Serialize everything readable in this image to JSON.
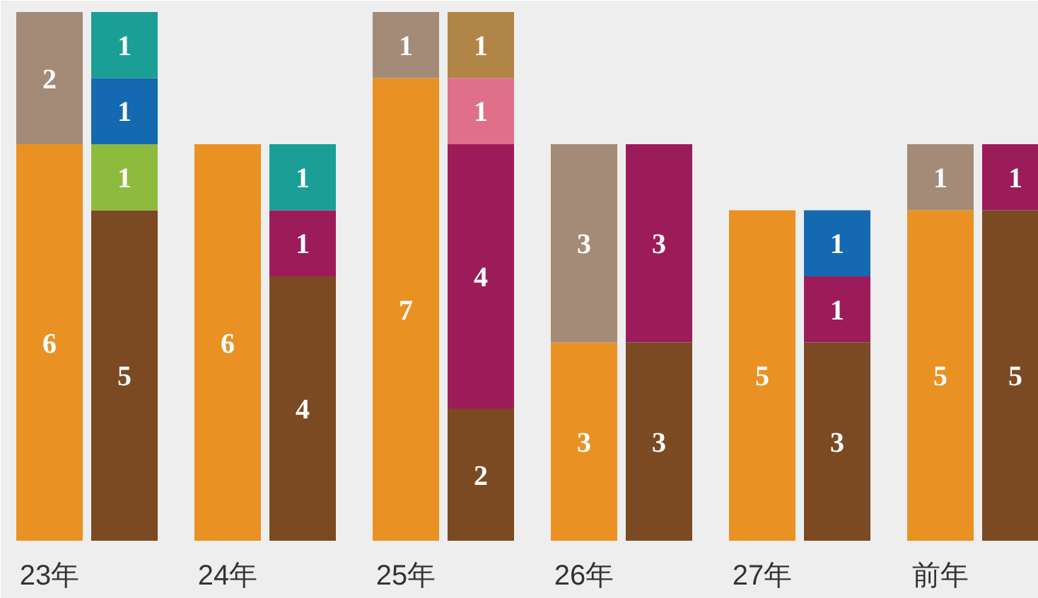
{
  "chart_data": {
    "type": "bar",
    "stacked": true,
    "data_labels": true,
    "grid": false,
    "ylim": [
      0,
      8
    ],
    "categories": [
      "23年",
      null,
      "24年",
      null,
      "25年",
      null,
      "26年",
      null,
      "27年",
      null,
      "前年",
      null
    ],
    "series": [
      {
        "color": "#7b4a22",
        "values": [
          null,
          5,
          null,
          4,
          null,
          2,
          null,
          3,
          null,
          3,
          null,
          5
        ]
      },
      {
        "color": "#e99223",
        "values": [
          6,
          null,
          6,
          null,
          7,
          null,
          3,
          null,
          5,
          null,
          5,
          null
        ]
      },
      {
        "color": "#a38b78",
        "values": [
          2,
          null,
          null,
          null,
          1,
          null,
          3,
          null,
          null,
          null,
          1,
          null
        ]
      },
      {
        "color": "#8dbb3e",
        "values": [
          null,
          1,
          null,
          null,
          null,
          null,
          null,
          null,
          null,
          null,
          null,
          null
        ]
      },
      {
        "color": "#9c1c5a",
        "values": [
          null,
          null,
          null,
          1,
          null,
          4,
          null,
          3,
          null,
          1,
          null,
          1
        ]
      },
      {
        "color": "#e0708a",
        "values": [
          null,
          null,
          null,
          null,
          null,
          1,
          null,
          null,
          null,
          null,
          null,
          null
        ]
      },
      {
        "color": "#1569b0",
        "values": [
          null,
          1,
          null,
          null,
          null,
          null,
          null,
          null,
          null,
          1,
          null,
          null
        ]
      },
      {
        "color": "#1a9e96",
        "values": [
          null,
          1,
          null,
          1,
          null,
          null,
          null,
          null,
          null,
          null,
          null,
          null
        ]
      },
      {
        "color": "#b08545",
        "values": [
          null,
          null,
          null,
          null,
          null,
          1,
          null,
          null,
          null,
          null,
          null,
          null
        ]
      }
    ]
  }
}
